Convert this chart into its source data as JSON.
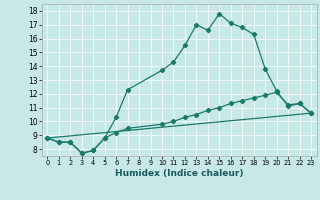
{
  "title": "",
  "xlabel": "Humidex (Indice chaleur)",
  "background_color": "#c8e8e8",
  "line_color": "#1a7a6a",
  "xlim": [
    -0.5,
    23.5
  ],
  "ylim": [
    7.5,
    18.5
  ],
  "xticks": [
    0,
    1,
    2,
    3,
    4,
    5,
    6,
    7,
    8,
    9,
    10,
    11,
    12,
    13,
    14,
    15,
    16,
    17,
    18,
    19,
    20,
    21,
    22,
    23
  ],
  "yticks": [
    8,
    9,
    10,
    11,
    12,
    13,
    14,
    15,
    16,
    17,
    18
  ],
  "line1_x": [
    0,
    1,
    2,
    3,
    4,
    5,
    6,
    7,
    10,
    11,
    12,
    13,
    14,
    15,
    16,
    17,
    18,
    19,
    20,
    21,
    22,
    23
  ],
  "line1_y": [
    8.8,
    8.5,
    8.5,
    7.7,
    7.9,
    8.8,
    10.3,
    12.3,
    13.7,
    14.3,
    15.5,
    17.0,
    16.6,
    17.8,
    17.1,
    16.8,
    16.3,
    13.8,
    12.2,
    11.1,
    11.3,
    10.6
  ],
  "line2_x": [
    0,
    1,
    2,
    3,
    4,
    5,
    6,
    7,
    10,
    11,
    12,
    13,
    14,
    15,
    16,
    17,
    18,
    19,
    20,
    21,
    22,
    23
  ],
  "line2_y": [
    8.8,
    8.5,
    8.5,
    7.7,
    7.9,
    8.8,
    9.2,
    9.5,
    9.8,
    10.0,
    10.3,
    10.5,
    10.8,
    11.0,
    11.3,
    11.5,
    11.7,
    11.9,
    12.1,
    11.2,
    11.3,
    10.6
  ],
  "line3_x": [
    0,
    23
  ],
  "line3_y": [
    8.8,
    10.6
  ],
  "marker": "D",
  "markersize": 2.2,
  "linewidth": 0.9
}
